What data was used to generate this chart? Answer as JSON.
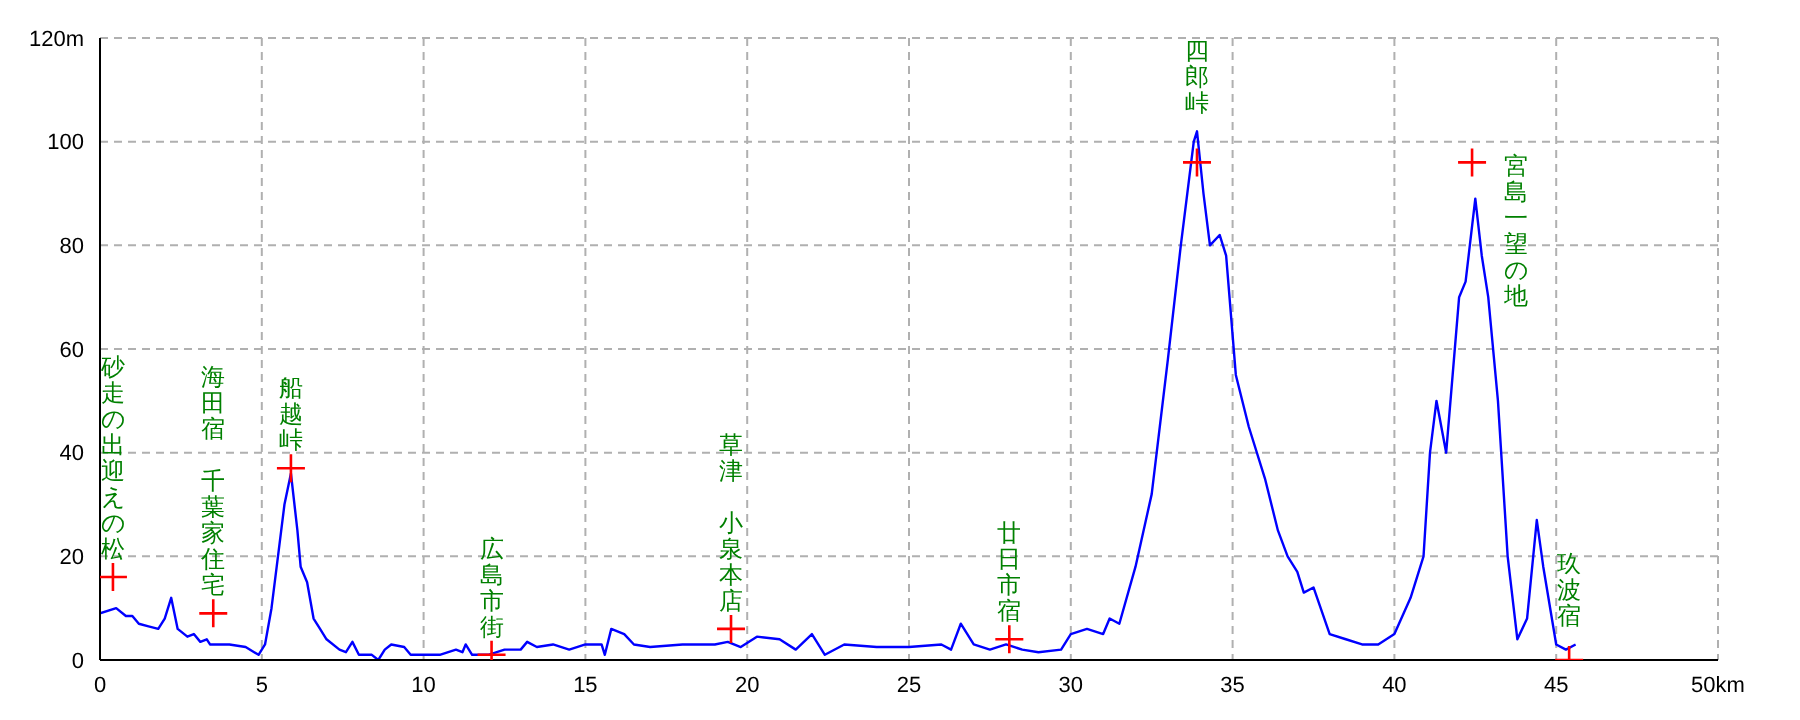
{
  "chart_data": {
    "type": "line",
    "xlim": [
      0,
      50
    ],
    "xticks": [
      0,
      5,
      10,
      15,
      20,
      25,
      30,
      35,
      40,
      45,
      {
        "value": 50,
        "label": "50km"
      }
    ],
    "ylim": [
      0,
      120
    ],
    "yticks": [
      0,
      20,
      40,
      60,
      80,
      100,
      {
        "value": 120,
        "label": "120m"
      }
    ],
    "grid": true,
    "series": [
      {
        "type": "line",
        "color": "#0000ff",
        "marker": "none",
        "line_style": "solid",
        "x": [
          0,
          0.5,
          0.8,
          1.0,
          1.2,
          1.5,
          1.8,
          2.0,
          2.2,
          2.4,
          2.7,
          2.9,
          3.1,
          3.3,
          3.4,
          4.0,
          4.5,
          4.9,
          5.1,
          5.3,
          5.5,
          5.7,
          5.9,
          6.1,
          6.2,
          6.4,
          6.6,
          6.8,
          7.0,
          7.4,
          7.6,
          7.8,
          8.0,
          8.4,
          8.6,
          8.8,
          9.0,
          9.4,
          9.6,
          10.5,
          11.0,
          11.2,
          11.3,
          11.5,
          12.0,
          12.5,
          13.0,
          13.2,
          13.5,
          14.0,
          14.5,
          15.0,
          15.5,
          15.6,
          15.8,
          16.2,
          16.5,
          17.0,
          18.0,
          19.0,
          19.4,
          19.8,
          20.3,
          21.0,
          21.5,
          22.0,
          22.4,
          23.0,
          24.0,
          25.0,
          26.0,
          26.3,
          26.6,
          27.0,
          27.5,
          28.0,
          28.5,
          29.0,
          29.7,
          30.0,
          30.5,
          31.0,
          31.2,
          31.5,
          32.0,
          32.5,
          33.0,
          33.4,
          33.8,
          33.9,
          34.1,
          34.3,
          34.6,
          34.8,
          35.1,
          35.5,
          36.0,
          36.4,
          36.7,
          37.0,
          37.2,
          37.5,
          38.0,
          38.5,
          39.0,
          39.5,
          40.0,
          40.5,
          40.9,
          41.1,
          41.3,
          41.6,
          41.8,
          42.0,
          42.2,
          42.5,
          42.7,
          42.9,
          43.2,
          43.5,
          43.8,
          44.1,
          44.4,
          44.6,
          45.0,
          45.3,
          45.6
        ],
        "values": [
          9,
          10,
          8.5,
          8.5,
          7,
          6.5,
          6,
          8,
          12,
          6,
          4.5,
          5,
          3.5,
          4,
          3,
          3,
          2.5,
          1,
          3,
          10,
          20,
          30,
          36,
          25,
          18,
          15,
          8,
          6,
          4,
          2,
          1.5,
          3.5,
          1,
          1,
          0,
          2,
          3,
          2.5,
          1,
          1,
          2,
          1.5,
          3,
          1,
          1,
          2,
          2,
          3.5,
          2.5,
          3,
          2,
          3,
          3,
          1,
          6,
          5,
          3,
          2.5,
          3,
          3,
          3.5,
          2.5,
          4.5,
          4,
          2,
          5,
          1,
          3,
          2.5,
          2.5,
          3,
          2,
          7,
          3,
          2,
          3,
          2,
          1.5,
          2,
          5,
          6,
          5,
          8,
          7,
          18,
          32,
          58,
          80,
          100,
          102,
          90,
          80,
          82,
          78,
          55,
          45,
          35,
          25,
          20,
          17,
          13,
          14,
          5,
          4,
          3,
          3,
          5,
          12,
          20,
          40,
          50,
          40,
          55,
          70,
          73,
          89,
          78,
          70,
          50,
          20,
          4,
          8,
          27,
          18,
          3,
          2,
          3
        ]
      },
      {
        "type": "scatter",
        "color": "#ff0000",
        "marker": "cross",
        "x": [
          0.4,
          3.5,
          5.9,
          12.1,
          19.5,
          28.1,
          33.9,
          42.4,
          45.4
        ],
        "values": [
          16,
          9,
          37,
          1,
          6,
          4,
          96,
          96,
          0
        ]
      }
    ],
    "annotations": [
      {
        "text": "砂走の出迎えの松",
        "x": 0.4,
        "y": 16
      },
      "海田宿",
      {
        "text": "千葉家住宅",
        "x": 3.5,
        "y": 9
      },
      {
        "text": "船越峠",
        "x": 5.9,
        "y": 37
      },
      {
        "text": "広島市街",
        "x": 12.1,
        "y": 1
      },
      "草津",
      {
        "text": "小泉本店",
        "x": 19.5,
        "y": 6
      },
      {
        "text": "廿日市宿",
        "x": 28.1,
        "y": 4
      },
      {
        "text": "四郎峠",
        "x": 33.9,
        "y": 96
      },
      {
        "text": "宮島一望の地",
        "x": 42.4,
        "y": 96
      },
      {
        "text": "玖波宿",
        "x": 45.4,
        "y": 0
      }
    ]
  }
}
